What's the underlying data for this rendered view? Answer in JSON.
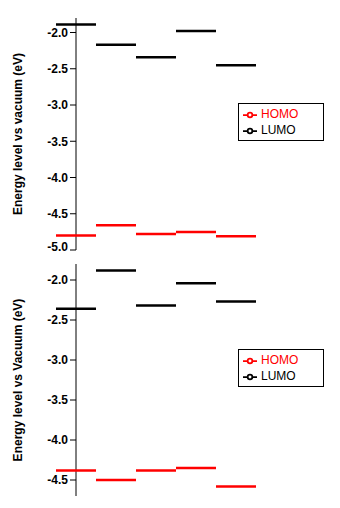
{
  "chart_data": [
    {
      "type": "scatter",
      "y_label": "Energy level vs vacuum (eV)",
      "categories": [
        null,
        null,
        null,
        null,
        null
      ],
      "series": [
        {
          "name": "LUMO",
          "color": "#000000",
          "marker": "hline",
          "values": [
            -1.89,
            -2.17,
            -2.34,
            -1.98,
            -2.45
          ]
        },
        {
          "name": "HOMO",
          "color": "#ff0000",
          "marker": "hline",
          "values": [
            -4.8,
            -4.66,
            -4.78,
            -4.75,
            -4.81
          ]
        }
      ],
      "ylim": [
        -5.0,
        -1.8
      ],
      "yticks": [
        {
          "value": -2,
          "label": "-2.0"
        },
        {
          "value": -2.5,
          "label": "-2.5"
        },
        {
          "value": -3,
          "label": "-3.0"
        },
        {
          "value": -3.5,
          "label": "-3.5"
        },
        {
          "value": -4,
          "label": "-4.0"
        },
        {
          "value": -4.5,
          "label": "-4.5"
        },
        {
          "value": -5,
          "label": "-5.0"
        }
      ],
      "tick_labels": "y",
      "grid": false,
      "legend": "right"
    },
    {
      "type": "scatter",
      "y_label": "Energy  level vs Vacuum (eV)",
      "categories": [
        null,
        null,
        null,
        null,
        null
      ],
      "series": [
        {
          "name": "LUMO",
          "color": "#000000",
          "marker": "hline",
          "values": [
            -2.36,
            -1.88,
            -2.32,
            -2.04,
            -2.27
          ]
        },
        {
          "name": "HOMO",
          "color": "#ff0000",
          "marker": "hline",
          "values": [
            -4.38,
            -4.5,
            -4.38,
            -4.35,
            -4.58
          ]
        }
      ],
      "ylim": [
        -4.7,
        -1.8
      ],
      "yticks": [
        {
          "value": -2,
          "label": "-2.0"
        },
        {
          "value": -2.5,
          "label": "-2.5"
        },
        {
          "value": -3,
          "label": "-3.0"
        },
        {
          "value": -3.5,
          "label": "-3.5"
        },
        {
          "value": -4,
          "label": "-4.0"
        },
        {
          "value": -4.5,
          "label": "-4.5"
        }
      ],
      "tick_labels": "y",
      "grid": false,
      "legend": "right"
    }
  ]
}
